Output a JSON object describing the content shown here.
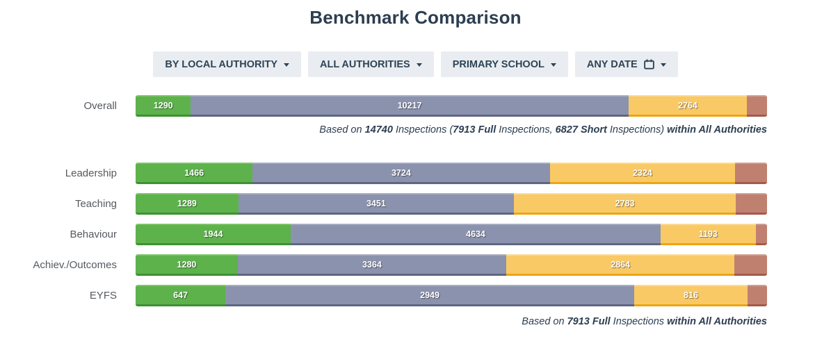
{
  "title": "Benchmark Comparison",
  "filters": [
    {
      "label": "BY LOCAL AUTHORITY"
    },
    {
      "label": "ALL AUTHORITIES"
    },
    {
      "label": "PRIMARY SCHOOL"
    },
    {
      "label": "ANY DATE",
      "icon": "calendar-icon"
    }
  ],
  "colors": {
    "green": {
      "fill": "#5db24b",
      "top": "#7ec468",
      "bottom": "#3e9132"
    },
    "slate": {
      "fill": "#8b92ae",
      "top": "#a7acc1",
      "bottom": "#5e6683"
    },
    "amber": {
      "fill": "#f9c965",
      "top": "#fbdb95",
      "bottom": "#eda411"
    },
    "red": {
      "fill": "#c08070",
      "top": "#cf9f92",
      "bottom": "#a55a48"
    }
  },
  "chart_data": {
    "type": "bar",
    "stacked": true,
    "orientation": "horizontal",
    "value_labels": "inside-segments",
    "rows": [
      {
        "label": "Overall",
        "segments": [
          {
            "color": "green",
            "value": "1290",
            "pct": 8.75
          },
          {
            "color": "slate",
            "value": "10217",
            "pct": 69.31
          },
          {
            "color": "amber",
            "value": "2764",
            "pct": 18.75
          },
          {
            "color": "red",
            "value": "",
            "pct": 3.19
          }
        ]
      },
      {
        "label": "Leadership",
        "segments": [
          {
            "color": "green",
            "value": "1466",
            "pct": 18.53
          },
          {
            "color": "slate",
            "value": "3724",
            "pct": 47.06
          },
          {
            "color": "amber",
            "value": "2324",
            "pct": 29.37
          },
          {
            "color": "red",
            "value": "",
            "pct": 5.04
          }
        ]
      },
      {
        "label": "Teaching",
        "segments": [
          {
            "color": "green",
            "value": "1289",
            "pct": 16.29
          },
          {
            "color": "slate",
            "value": "3451",
            "pct": 43.61
          },
          {
            "color": "amber",
            "value": "2783",
            "pct": 35.17
          },
          {
            "color": "red",
            "value": "",
            "pct": 4.93
          }
        ]
      },
      {
        "label": "Behaviour",
        "segments": [
          {
            "color": "green",
            "value": "1944",
            "pct": 24.57
          },
          {
            "color": "slate",
            "value": "4634",
            "pct": 58.56
          },
          {
            "color": "amber",
            "value": "1193",
            "pct": 15.08
          },
          {
            "color": "red",
            "value": "",
            "pct": 1.79
          }
        ]
      },
      {
        "label": "Achiev./Outcomes",
        "segments": [
          {
            "color": "green",
            "value": "1280",
            "pct": 16.18
          },
          {
            "color": "slate",
            "value": "3364",
            "pct": 42.51
          },
          {
            "color": "amber",
            "value": "2864",
            "pct": 36.19
          },
          {
            "color": "red",
            "value": "",
            "pct": 5.12
          }
        ]
      },
      {
        "label": "EYFS",
        "segments": [
          {
            "color": "green",
            "value": "647",
            "pct": 14.21
          },
          {
            "color": "slate",
            "value": "2949",
            "pct": 64.77
          },
          {
            "color": "amber",
            "value": "816",
            "pct": 17.92
          },
          {
            "color": "red",
            "value": "",
            "pct": 3.1
          }
        ]
      }
    ],
    "captions": {
      "overall": [
        {
          "text": "Based on ",
          "bold": false
        },
        {
          "text": "14740",
          "bold": true
        },
        {
          "text": " Inspections (",
          "bold": false
        },
        {
          "text": "7913 Full",
          "bold": true
        },
        {
          "text": " Inspections, ",
          "bold": false
        },
        {
          "text": "6827 Short",
          "bold": true
        },
        {
          "text": " Inspections) ",
          "bold": false
        },
        {
          "text": "within All Authorities",
          "bold": true
        }
      ],
      "footer": [
        {
          "text": "Based on ",
          "bold": false
        },
        {
          "text": "7913 Full",
          "bold": true
        },
        {
          "text": " Inspections ",
          "bold": false
        },
        {
          "text": "within All Authorities",
          "bold": true
        }
      ]
    }
  }
}
